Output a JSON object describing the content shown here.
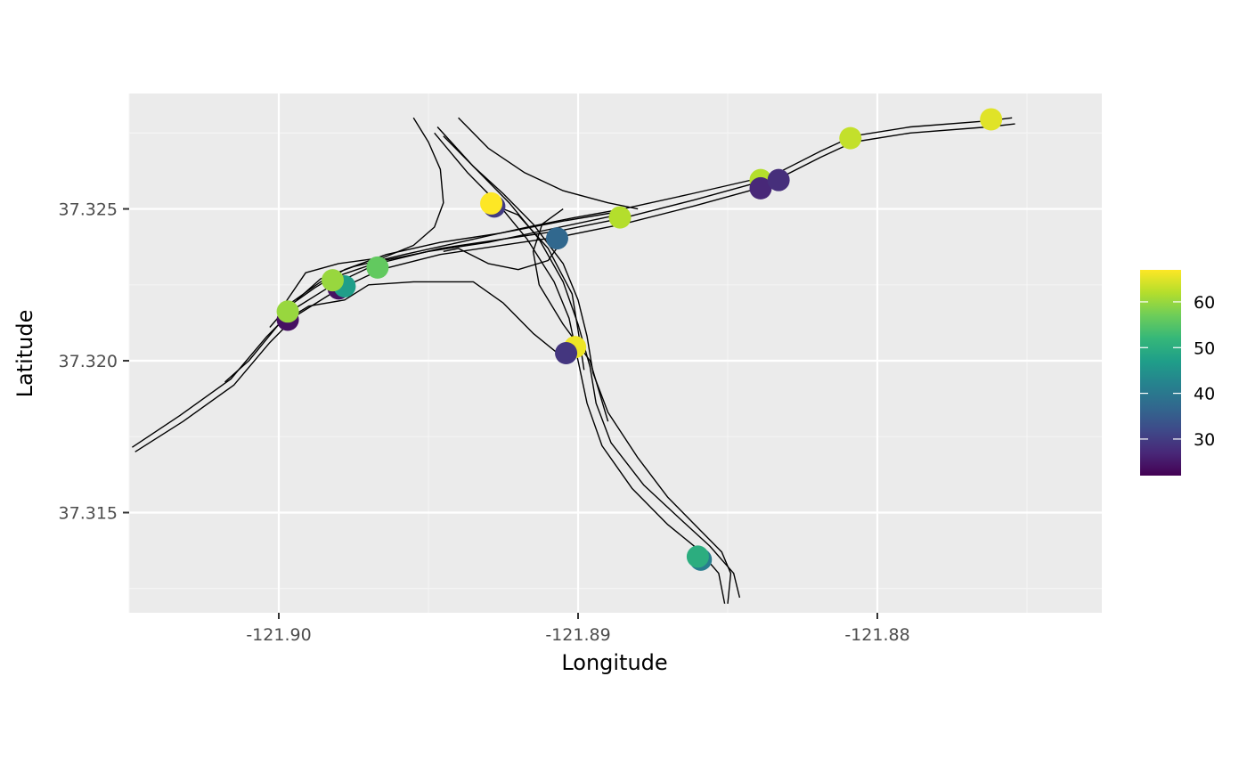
{
  "colors": {
    "panel_background": "#EBEBEB",
    "grid_major": "#FFFFFF",
    "grid_minor": "#F5F5F5",
    "road_line": "#000000",
    "tick_label": "#4D4D4D",
    "viridis": [
      "#440154",
      "#482878",
      "#3E4A89",
      "#31688E",
      "#26828E",
      "#1F9E89",
      "#35B779",
      "#6DCD59",
      "#B4DE2C",
      "#FDE725"
    ]
  },
  "chart_data": {
    "type": "scatter",
    "xlabel": "Longitude",
    "ylabel": "Latitude",
    "xlim": [
      -121.905,
      -121.8725
    ],
    "ylim": [
      37.3117,
      37.3288
    ],
    "x_ticks": [
      -121.9,
      -121.89,
      -121.88
    ],
    "x_tick_labels": [
      "-121.90",
      "-121.89",
      "-121.88"
    ],
    "y_ticks": [
      37.315,
      37.32,
      37.325
    ],
    "y_tick_labels": [
      "37.315",
      "37.320",
      "37.325"
    ],
    "x_minor_ticks": [
      -121.905,
      -121.895,
      -121.885,
      -121.875
    ],
    "y_minor_ticks": [
      37.3125,
      37.3175,
      37.3225,
      37.3275
    ],
    "grid": true,
    "color_scale": {
      "name": "viridis",
      "range": [
        22,
        67
      ],
      "breaks": [
        30,
        40,
        50,
        60
      ],
      "break_labels": [
        "30",
        "40",
        "50",
        "60"
      ],
      "legend_position": "right"
    },
    "points": [
      {
        "lon": -121.8997,
        "lat": 37.32135,
        "value": 24
      },
      {
        "lon": -121.8997,
        "lat": 37.32162,
        "value": 60
      },
      {
        "lon": -121.898,
        "lat": 37.32238,
        "value": 24
      },
      {
        "lon": -121.8978,
        "lat": 37.32245,
        "value": 47
      },
      {
        "lon": -121.8982,
        "lat": 37.32265,
        "value": 60
      },
      {
        "lon": -121.8967,
        "lat": 37.32307,
        "value": 56
      },
      {
        "lon": -121.8928,
        "lat": 37.32508,
        "value": 30
      },
      {
        "lon": -121.8929,
        "lat": 37.32518,
        "value": 67
      },
      {
        "lon": -121.8907,
        "lat": 37.32403,
        "value": 37
      },
      {
        "lon": -121.8886,
        "lat": 37.32472,
        "value": 62
      },
      {
        "lon": -121.8901,
        "lat": 37.32045,
        "value": 66
      },
      {
        "lon": -121.8904,
        "lat": 37.32025,
        "value": 29
      },
      {
        "lon": -121.8859,
        "lat": 37.31345,
        "value": 41
      },
      {
        "lon": -121.886,
        "lat": 37.31355,
        "value": 50
      },
      {
        "lon": -121.8839,
        "lat": 37.32595,
        "value": 62
      },
      {
        "lon": -121.8839,
        "lat": 37.32568,
        "value": 27
      },
      {
        "lon": -121.8833,
        "lat": 37.32595,
        "value": 28
      },
      {
        "lon": -121.8809,
        "lat": 37.32733,
        "value": 63
      },
      {
        "lon": -121.8762,
        "lat": 37.32795,
        "value": 65
      }
    ],
    "road_lines": [
      [
        [
          -121.9049,
          37.31715
        ],
        [
          -121.9033,
          37.3182
        ],
        [
          -121.9016,
          37.3194
        ],
        [
          -121.9004,
          37.3208
        ],
        [
          -121.8995,
          37.3217
        ],
        [
          -121.8982,
          37.3225
        ],
        [
          -121.8967,
          37.3232
        ],
        [
          -121.8946,
          37.3237
        ],
        [
          -121.8905,
          37.3243
        ],
        [
          -121.8885,
          37.3247
        ],
        [
          -121.8861,
          37.3253
        ],
        [
          -121.8839,
          37.3259
        ],
        [
          -121.8819,
          37.3269
        ],
        [
          -121.8808,
          37.3274
        ],
        [
          -121.8789,
          37.3277
        ],
        [
          -121.8763,
          37.3279
        ],
        [
          -121.8755,
          37.328
        ]
      ],
      [
        [
          -121.9048,
          37.317
        ],
        [
          -121.9032,
          37.318
        ],
        [
          -121.9015,
          37.3192
        ],
        [
          -121.9003,
          37.3206
        ],
        [
          -121.8994,
          37.3215
        ],
        [
          -121.8981,
          37.3223
        ],
        [
          -121.8966,
          37.323
        ],
        [
          -121.8946,
          37.3235
        ],
        [
          -121.8905,
          37.3241
        ],
        [
          -121.8885,
          37.3245
        ],
        [
          -121.8861,
          37.3251
        ],
        [
          -121.8839,
          37.3257
        ],
        [
          -121.8819,
          37.3267
        ],
        [
          -121.8808,
          37.3272
        ],
        [
          -121.8789,
          37.3275
        ],
        [
          -121.8763,
          37.3277
        ],
        [
          -121.8754,
          37.3278
        ]
      ],
      [
        [
          -121.9018,
          37.3193
        ],
        [
          -121.901,
          37.32
        ],
        [
          -121.9,
          37.3212
        ],
        [
          -121.899,
          37.3218
        ],
        [
          -121.8978,
          37.322
        ],
        [
          -121.897,
          37.3225
        ],
        [
          -121.8955,
          37.3226
        ],
        [
          -121.8945,
          37.3226
        ],
        [
          -121.8935,
          37.3226
        ],
        [
          -121.8925,
          37.3219
        ],
        [
          -121.8915,
          37.3209
        ],
        [
          -121.8905,
          37.3201
        ]
      ],
      [
        [
          -121.9003,
          37.3211
        ],
        [
          -121.8996,
          37.3219
        ],
        [
          -121.8986,
          37.3226
        ],
        [
          -121.8977,
          37.3229
        ],
        [
          -121.8965,
          37.3233
        ],
        [
          -121.895,
          37.3236
        ],
        [
          -121.893,
          37.3239
        ],
        [
          -121.8906,
          37.3244
        ],
        [
          -121.8887,
          37.3248
        ]
      ],
      [
        [
          -121.8998,
          37.3217
        ],
        [
          -121.8988,
          37.3224
        ],
        [
          -121.8978,
          37.323
        ],
        [
          -121.8964,
          37.3235
        ],
        [
          -121.8946,
          37.3239
        ],
        [
          -121.8926,
          37.3242
        ],
        [
          -121.8905,
          37.3246
        ],
        [
          -121.8887,
          37.3249
        ]
      ],
      [
        [
          -121.8994,
          37.322
        ],
        [
          -121.8986,
          37.3227
        ],
        [
          -121.8975,
          37.3231
        ],
        [
          -121.8958,
          37.3235
        ],
        [
          -121.8935,
          37.324
        ],
        [
          -121.8917,
          37.3244
        ],
        [
          -121.8902,
          37.3247
        ],
        [
          -121.8885,
          37.325
        ],
        [
          -121.8862,
          37.3255
        ],
        [
          -121.884,
          37.326
        ]
      ],
      [
        [
          -121.9,
          37.3216
        ],
        [
          -121.8991,
          37.3229
        ],
        [
          -121.898,
          37.3232
        ],
        [
          -121.8965,
          37.3234
        ],
        [
          -121.8955,
          37.3238
        ],
        [
          -121.8948,
          37.3244
        ],
        [
          -121.8945,
          37.3252
        ],
        [
          -121.8946,
          37.3263
        ],
        [
          -121.895,
          37.3272
        ],
        [
          -121.8955,
          37.328
        ]
      ],
      [
        [
          -121.8947,
          37.3277
        ],
        [
          -121.8935,
          37.3264
        ],
        [
          -121.8925,
          37.3255
        ],
        [
          -121.8915,
          37.3245
        ],
        [
          -121.8905,
          37.3232
        ],
        [
          -121.89,
          37.322
        ],
        [
          -121.8897,
          37.3208
        ],
        [
          -121.8895,
          37.3196
        ],
        [
          -121.889,
          37.3183
        ],
        [
          -121.888,
          37.3168
        ],
        [
          -121.887,
          37.3155
        ],
        [
          -121.886,
          37.3145
        ],
        [
          -121.8852,
          37.3137
        ],
        [
          -121.8849,
          37.313
        ],
        [
          -121.885,
          37.312
        ]
      ],
      [
        [
          -121.8948,
          37.3275
        ],
        [
          -121.8937,
          37.3262
        ],
        [
          -121.8927,
          37.3252
        ],
        [
          -121.8917,
          37.324
        ],
        [
          -121.8908,
          37.3226
        ],
        [
          -121.8903,
          37.3214
        ],
        [
          -121.89,
          37.32
        ],
        [
          -121.8897,
          37.3186
        ],
        [
          -121.8892,
          37.3172
        ],
        [
          -121.8882,
          37.3158
        ],
        [
          -121.887,
          37.3146
        ],
        [
          -121.886,
          37.3138
        ],
        [
          -121.8853,
          37.313
        ],
        [
          -121.8851,
          37.312
        ]
      ],
      [
        [
          -121.8945,
          37.3274
        ],
        [
          -121.8934,
          37.3263
        ],
        [
          -121.8923,
          37.3252
        ],
        [
          -121.8913,
          37.324
        ],
        [
          -121.8905,
          37.3226
        ],
        [
          -121.89,
          37.3212
        ],
        [
          -121.8896,
          37.3198
        ],
        [
          -121.8894,
          37.3186
        ],
        [
          -121.8889,
          37.3173
        ],
        [
          -121.8878,
          37.3159
        ],
        [
          -121.8866,
          37.3148
        ],
        [
          -121.8856,
          37.3139
        ],
        [
          -121.8848,
          37.313
        ],
        [
          -121.8846,
          37.3122
        ]
      ],
      [
        [
          -121.894,
          37.328
        ],
        [
          -121.893,
          37.327
        ],
        [
          -121.8918,
          37.3262
        ],
        [
          -121.8905,
          37.3256
        ],
        [
          -121.889,
          37.3252
        ],
        [
          -121.888,
          37.325
        ]
      ],
      [
        [
          -121.893,
          37.3252
        ],
        [
          -121.892,
          37.3248
        ],
        [
          -121.891,
          37.3237
        ],
        [
          -121.8902,
          37.3222
        ],
        [
          -121.89,
          37.321
        ],
        [
          -121.8898,
          37.3197
        ]
      ],
      [
        [
          -121.8905,
          37.325
        ],
        [
          -121.8912,
          37.3245
        ],
        [
          -121.8915,
          37.3236
        ],
        [
          -121.8913,
          37.3225
        ],
        [
          -121.8905,
          37.3212
        ],
        [
          -121.8896,
          37.32
        ],
        [
          -121.889,
          37.318
        ]
      ],
      [
        [
          -121.8945,
          37.3236
        ],
        [
          -121.894,
          37.3237
        ],
        [
          -121.893,
          37.3232
        ],
        [
          -121.892,
          37.323
        ],
        [
          -121.891,
          37.3233
        ],
        [
          -121.8905,
          37.324
        ]
      ]
    ]
  }
}
